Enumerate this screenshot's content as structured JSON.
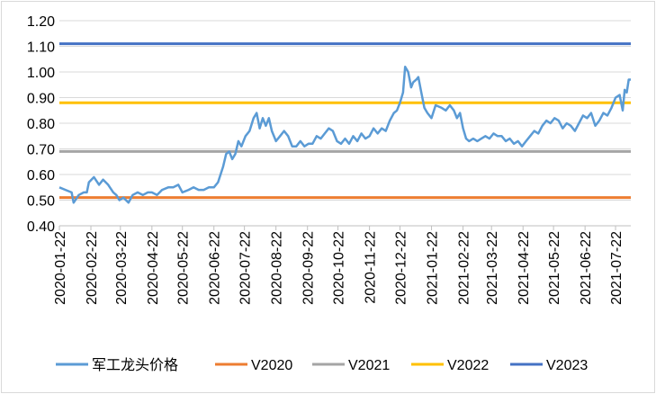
{
  "chart_data": {
    "type": "line",
    "title": "",
    "xlabel": "",
    "ylabel": "",
    "ylim": [
      0.4,
      1.2
    ],
    "yticks": [
      "0.40",
      "0.50",
      "0.60",
      "0.70",
      "0.80",
      "0.90",
      "1.00",
      "1.10",
      "1.20"
    ],
    "x_start": "2020-01-22",
    "x_end": "2021-08-06",
    "xticks": [
      "2020-01-22",
      "2020-02-22",
      "2020-03-22",
      "2020-04-22",
      "2020-05-22",
      "2020-06-22",
      "2020-07-22",
      "2020-08-22",
      "2020-09-22",
      "2020-10-22",
      "2020-11-22",
      "2020-12-22",
      "2021-01-22",
      "2021-02-22",
      "2021-03-22",
      "2021-04-22",
      "2021-05-22",
      "2021-06-22",
      "2021-07-22"
    ],
    "grid": "horizontal",
    "legend_position": "bottom",
    "series": [
      {
        "name": "军工龙头价格",
        "color": "#5b9bd5",
        "points": [
          [
            "2020-01-22",
            0.55
          ],
          [
            "2020-01-28",
            0.54
          ],
          [
            "2020-02-03",
            0.53
          ],
          [
            "2020-02-05",
            0.49
          ],
          [
            "2020-02-10",
            0.52
          ],
          [
            "2020-02-15",
            0.53
          ],
          [
            "2020-02-18",
            0.53
          ],
          [
            "2020-02-20",
            0.57
          ],
          [
            "2020-02-25",
            0.59
          ],
          [
            "2020-03-01",
            0.56
          ],
          [
            "2020-03-05",
            0.58
          ],
          [
            "2020-03-10",
            0.56
          ],
          [
            "2020-03-15",
            0.53
          ],
          [
            "2020-03-18",
            0.52
          ],
          [
            "2020-03-21",
            0.5
          ],
          [
            "2020-03-25",
            0.51
          ],
          [
            "2020-03-30",
            0.49
          ],
          [
            "2020-04-03",
            0.52
          ],
          [
            "2020-04-08",
            0.53
          ],
          [
            "2020-04-13",
            0.52
          ],
          [
            "2020-04-18",
            0.53
          ],
          [
            "2020-04-22",
            0.53
          ],
          [
            "2020-04-27",
            0.52
          ],
          [
            "2020-05-02",
            0.54
          ],
          [
            "2020-05-08",
            0.55
          ],
          [
            "2020-05-13",
            0.55
          ],
          [
            "2020-05-18",
            0.56
          ],
          [
            "2020-05-22",
            0.53
          ],
          [
            "2020-05-28",
            0.54
          ],
          [
            "2020-06-02",
            0.55
          ],
          [
            "2020-06-07",
            0.54
          ],
          [
            "2020-06-12",
            0.54
          ],
          [
            "2020-06-17",
            0.55
          ],
          [
            "2020-06-22",
            0.55
          ],
          [
            "2020-06-26",
            0.57
          ],
          [
            "2020-07-01",
            0.63
          ],
          [
            "2020-07-04",
            0.68
          ],
          [
            "2020-07-07",
            0.69
          ],
          [
            "2020-07-10",
            0.66
          ],
          [
            "2020-07-13",
            0.68
          ],
          [
            "2020-07-16",
            0.73
          ],
          [
            "2020-07-19",
            0.71
          ],
          [
            "2020-07-23",
            0.75
          ],
          [
            "2020-07-27",
            0.77
          ],
          [
            "2020-07-31",
            0.82
          ],
          [
            "2020-08-03",
            0.84
          ],
          [
            "2020-08-06",
            0.78
          ],
          [
            "2020-08-09",
            0.82
          ],
          [
            "2020-08-12",
            0.79
          ],
          [
            "2020-08-15",
            0.82
          ],
          [
            "2020-08-18",
            0.77
          ],
          [
            "2020-08-22",
            0.73
          ],
          [
            "2020-08-26",
            0.75
          ],
          [
            "2020-08-30",
            0.77
          ],
          [
            "2020-09-03",
            0.75
          ],
          [
            "2020-09-07",
            0.71
          ],
          [
            "2020-09-11",
            0.71
          ],
          [
            "2020-09-15",
            0.73
          ],
          [
            "2020-09-19",
            0.71
          ],
          [
            "2020-09-23",
            0.72
          ],
          [
            "2020-09-27",
            0.72
          ],
          [
            "2020-10-01",
            0.75
          ],
          [
            "2020-10-05",
            0.74
          ],
          [
            "2020-10-09",
            0.76
          ],
          [
            "2020-10-13",
            0.78
          ],
          [
            "2020-10-17",
            0.77
          ],
          [
            "2020-10-21",
            0.73
          ],
          [
            "2020-10-25",
            0.72
          ],
          [
            "2020-10-29",
            0.74
          ],
          [
            "2020-11-02",
            0.72
          ],
          [
            "2020-11-06",
            0.75
          ],
          [
            "2020-11-10",
            0.73
          ],
          [
            "2020-11-14",
            0.76
          ],
          [
            "2020-11-18",
            0.74
          ],
          [
            "2020-11-22",
            0.75
          ],
          [
            "2020-11-26",
            0.78
          ],
          [
            "2020-11-30",
            0.76
          ],
          [
            "2020-12-04",
            0.78
          ],
          [
            "2020-12-08",
            0.77
          ],
          [
            "2020-12-12",
            0.81
          ],
          [
            "2020-12-16",
            0.84
          ],
          [
            "2020-12-19",
            0.85
          ],
          [
            "2020-12-22",
            0.88
          ],
          [
            "2020-12-25",
            0.92
          ],
          [
            "2020-12-27",
            1.02
          ],
          [
            "2020-12-30",
            1.0
          ],
          [
            "2021-01-02",
            0.94
          ],
          [
            "2021-01-04",
            0.96
          ],
          [
            "2021-01-07",
            0.97
          ],
          [
            "2021-01-09",
            0.98
          ],
          [
            "2021-01-12",
            0.92
          ],
          [
            "2021-01-15",
            0.86
          ],
          [
            "2021-01-18",
            0.84
          ],
          [
            "2021-01-22",
            0.82
          ],
          [
            "2021-01-26",
            0.87
          ],
          [
            "2021-02-01",
            0.86
          ],
          [
            "2021-02-05",
            0.85
          ],
          [
            "2021-02-09",
            0.87
          ],
          [
            "2021-02-13",
            0.85
          ],
          [
            "2021-02-16",
            0.82
          ],
          [
            "2021-02-19",
            0.84
          ],
          [
            "2021-02-22",
            0.78
          ],
          [
            "2021-02-25",
            0.74
          ],
          [
            "2021-02-28",
            0.73
          ],
          [
            "2021-03-04",
            0.74
          ],
          [
            "2021-03-08",
            0.73
          ],
          [
            "2021-03-12",
            0.74
          ],
          [
            "2021-03-16",
            0.75
          ],
          [
            "2021-03-20",
            0.74
          ],
          [
            "2021-03-24",
            0.76
          ],
          [
            "2021-03-28",
            0.75
          ],
          [
            "2021-04-01",
            0.75
          ],
          [
            "2021-04-05",
            0.73
          ],
          [
            "2021-04-09",
            0.74
          ],
          [
            "2021-04-13",
            0.72
          ],
          [
            "2021-04-17",
            0.73
          ],
          [
            "2021-04-21",
            0.71
          ],
          [
            "2021-04-25",
            0.73
          ],
          [
            "2021-04-29",
            0.75
          ],
          [
            "2021-05-03",
            0.77
          ],
          [
            "2021-05-07",
            0.76
          ],
          [
            "2021-05-11",
            0.79
          ],
          [
            "2021-05-15",
            0.81
          ],
          [
            "2021-05-19",
            0.8
          ],
          [
            "2021-05-23",
            0.82
          ],
          [
            "2021-05-27",
            0.81
          ],
          [
            "2021-05-31",
            0.78
          ],
          [
            "2021-06-04",
            0.8
          ],
          [
            "2021-06-08",
            0.79
          ],
          [
            "2021-06-12",
            0.77
          ],
          [
            "2021-06-16",
            0.8
          ],
          [
            "2021-06-20",
            0.83
          ],
          [
            "2021-06-24",
            0.82
          ],
          [
            "2021-06-28",
            0.84
          ],
          [
            "2021-07-02",
            0.79
          ],
          [
            "2021-07-06",
            0.81
          ],
          [
            "2021-07-10",
            0.84
          ],
          [
            "2021-07-14",
            0.83
          ],
          [
            "2021-07-18",
            0.86
          ],
          [
            "2021-07-22",
            0.9
          ],
          [
            "2021-07-26",
            0.91
          ],
          [
            "2021-07-29",
            0.85
          ],
          [
            "2021-07-31",
            0.93
          ],
          [
            "2021-08-02",
            0.92
          ],
          [
            "2021-08-04",
            0.97
          ],
          [
            "2021-08-06",
            0.97
          ]
        ]
      },
      {
        "name": "V2020",
        "color": "#ed7d31",
        "constant": 0.51
      },
      {
        "name": "V2021",
        "color": "#a5a5a5",
        "constant": 0.69
      },
      {
        "name": "V2022",
        "color": "#ffc000",
        "constant": 0.88
      },
      {
        "name": "V2023",
        "color": "#4472c4",
        "constant": 1.11
      }
    ]
  }
}
